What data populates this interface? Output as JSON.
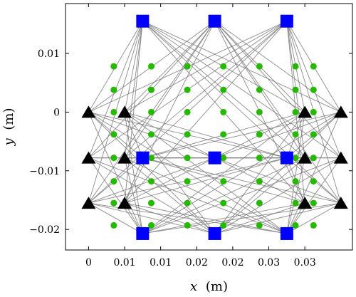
{
  "chart_data": {
    "type": "scatter",
    "xlabel_var": "x",
    "xlabel_unit": "(m)",
    "ylabel_var": "y",
    "ylabel_unit": "(m)",
    "xlim": [
      -0.0032,
      0.0366
    ],
    "ylim": [
      -0.0235,
      0.0185
    ],
    "xticks": [
      {
        "value": 0.0,
        "label": "0"
      },
      {
        "value": 0.005,
        "label": "0.01"
      },
      {
        "value": 0.01,
        "label": "0.01"
      },
      {
        "value": 0.015,
        "label": "0.02"
      },
      {
        "value": 0.02,
        "label": "0.02"
      },
      {
        "value": 0.025,
        "label": "0.03"
      },
      {
        "value": 0.03,
        "label": "0.03"
      }
    ],
    "yticks": [
      {
        "value": 0.01,
        "label": "0.01"
      },
      {
        "value": 0.0,
        "label": "0"
      },
      {
        "value": -0.01,
        "label": "−0.01"
      },
      {
        "value": -0.02,
        "label": "−0.02"
      }
    ],
    "grid": false,
    "colors": {
      "squares": "#0000ff",
      "triangles": "#000000",
      "circles": "#22bb00",
      "edges": "#808080"
    },
    "series": [
      {
        "marker": "square",
        "points": [
          [
            0.0075,
            0.0155
          ],
          [
            0.0175,
            0.0155
          ],
          [
            0.0275,
            0.0155
          ],
          [
            0.0075,
            -0.0078
          ],
          [
            0.0175,
            -0.0078
          ],
          [
            0.0275,
            -0.0078
          ],
          [
            0.0075,
            -0.0207
          ],
          [
            0.0175,
            -0.0207
          ],
          [
            0.0275,
            -0.0207
          ]
        ]
      },
      {
        "marker": "triangle",
        "points": [
          [
            0.0,
            0.0
          ],
          [
            0.005,
            0.0
          ],
          [
            0.03,
            0.0
          ],
          [
            0.035,
            0.0
          ],
          [
            0.0,
            -0.0078
          ],
          [
            0.005,
            -0.0078
          ],
          [
            0.03,
            -0.0078
          ],
          [
            0.035,
            -0.0078
          ],
          [
            0.0,
            -0.0155
          ],
          [
            0.005,
            -0.0155
          ],
          [
            0.03,
            -0.0155
          ],
          [
            0.035,
            -0.0155
          ]
        ]
      },
      {
        "marker": "circle",
        "columns": [
          0.0035,
          0.0087,
          0.0137,
          0.0187,
          0.0237,
          0.0287,
          0.0312
        ],
        "rows": [
          0.0078,
          0.0038,
          0.0,
          -0.0038,
          -0.0078,
          -0.0118,
          -0.0155,
          -0.0193
        ]
      }
    ]
  }
}
